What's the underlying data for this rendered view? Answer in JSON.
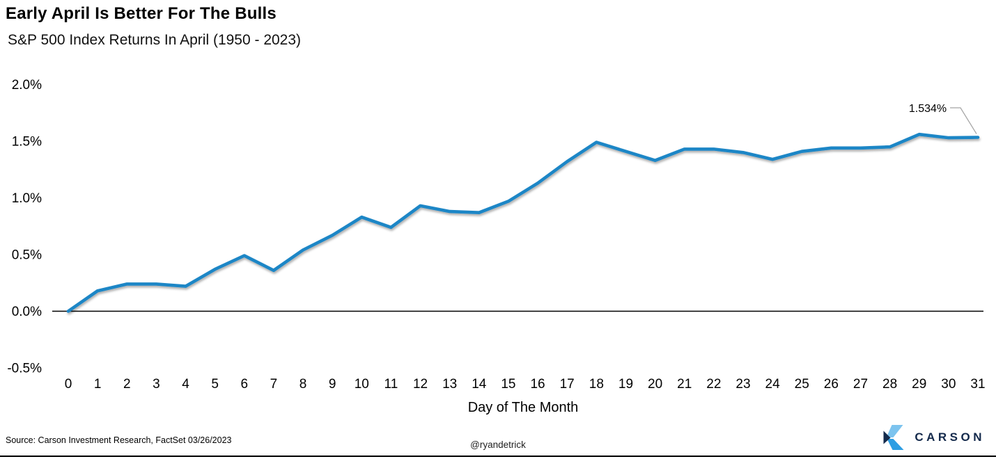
{
  "header": {
    "title": "Early April Is Better For The Bulls",
    "subtitle": "S&P 500 Index Returns In April (1950 - 2023)"
  },
  "chart_data": {
    "type": "line",
    "title": "Early April Is Better For The Bulls",
    "subtitle": "S&P 500 Index Returns In April (1950 - 2023)",
    "xlabel": "Day of The Month",
    "ylabel": "",
    "x": [
      0,
      1,
      2,
      3,
      4,
      5,
      6,
      7,
      8,
      9,
      10,
      11,
      12,
      13,
      14,
      15,
      16,
      17,
      18,
      19,
      20,
      21,
      22,
      23,
      24,
      25,
      26,
      27,
      28,
      29,
      30,
      31
    ],
    "values": [
      0.0,
      0.18,
      0.24,
      0.24,
      0.22,
      0.37,
      0.49,
      0.36,
      0.54,
      0.67,
      0.83,
      0.74,
      0.93,
      0.88,
      0.87,
      0.97,
      1.13,
      1.32,
      1.49,
      1.41,
      1.33,
      1.43,
      1.43,
      1.4,
      1.34,
      1.41,
      1.44,
      1.44,
      1.45,
      1.56,
      1.53,
      1.534
    ],
    "ylim": [
      -0.5,
      2.0
    ],
    "y_ticks": [
      {
        "v": 2.0,
        "label": "2.0%"
      },
      {
        "v": 1.5,
        "label": "1.5%"
      },
      {
        "v": 1.0,
        "label": "1.0%"
      },
      {
        "v": 0.5,
        "label": "0.5%"
      },
      {
        "v": 0.0,
        "label": "0.0%"
      },
      {
        "v": -0.5,
        "label": "-0.5%"
      }
    ],
    "grid": false,
    "legend": "none",
    "line_color": "#1e86c6",
    "axis_color": "#000000",
    "leader_color": "#a3a3a3",
    "annotation": {
      "text": "1.534%",
      "day": 31,
      "value": 1.534
    }
  },
  "footer": {
    "source": "Source: Carson Investment Research, FactSet 03/26/2023",
    "handle": "@ryandetrick",
    "logo_text": "CARSON",
    "logo_navy": "#13294b",
    "logo_light_blue": "#7cc3ee",
    "logo_mid_blue": "#2d9ee3"
  }
}
